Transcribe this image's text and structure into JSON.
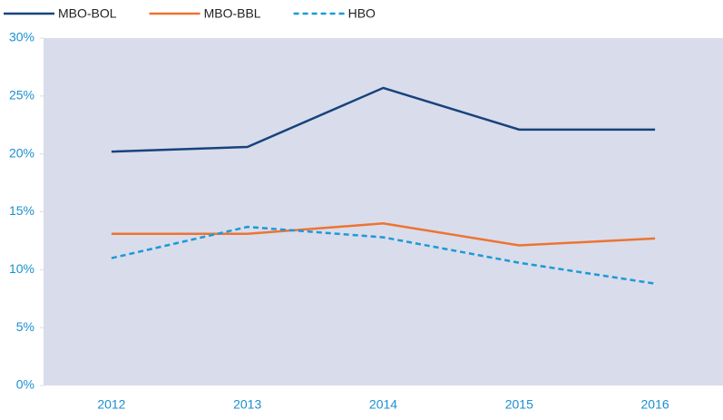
{
  "chart_data": {
    "type": "line",
    "categories": [
      "2012",
      "2013",
      "2014",
      "2015",
      "2016"
    ],
    "series": [
      {
        "name": "MBO-BOL",
        "color": "#17437d",
        "dashed": false,
        "values": [
          20.2,
          20.6,
          25.7,
          22.1,
          22.1
        ]
      },
      {
        "name": "MBO-BBL",
        "color": "#ec7432",
        "dashed": false,
        "values": [
          13.1,
          13.1,
          14.0,
          12.1,
          12.7
        ]
      },
      {
        "name": "HBO",
        "color": "#1b9ad7",
        "dashed": true,
        "values": [
          11.0,
          13.7,
          12.8,
          10.6,
          8.8
        ]
      }
    ],
    "ylim": [
      0,
      30
    ],
    "yticks": [
      {
        "value": 0,
        "label": "0%"
      },
      {
        "value": 5,
        "label": "5%"
      },
      {
        "value": 10,
        "label": "10%"
      },
      {
        "value": 15,
        "label": "15%"
      },
      {
        "value": 20,
        "label": "20%"
      },
      {
        "value": 25,
        "label": "25%"
      },
      {
        "value": 30,
        "label": "30%"
      }
    ],
    "grid": false,
    "legend": "top-left",
    "background": "#d9dceb"
  }
}
